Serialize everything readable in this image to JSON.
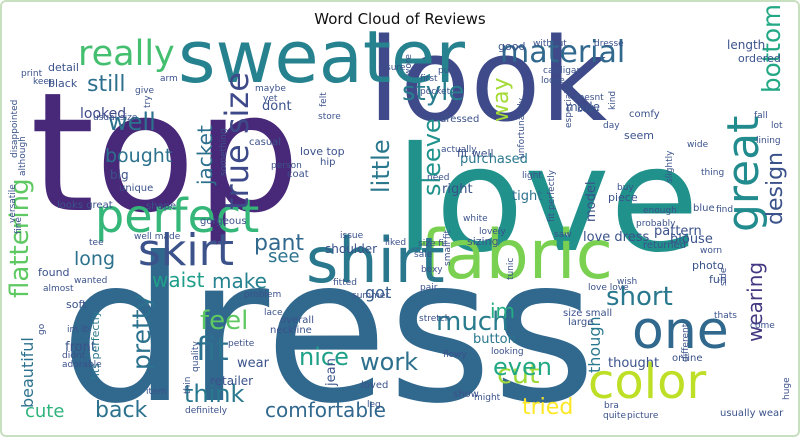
{
  "chart_data": {
    "type": "wordcloud",
    "title": "Word Cloud of Reviews",
    "words": [
      {
        "text": "dress",
        "weight": 100,
        "color": "#31688e"
      },
      {
        "text": "top",
        "weight": 92,
        "color": "#482878"
      },
      {
        "text": "love",
        "weight": 80,
        "color": "#21918c"
      },
      {
        "text": "look",
        "weight": 70,
        "color": "#3e4a89"
      },
      {
        "text": "sweater",
        "weight": 52,
        "color": "#26828e"
      },
      {
        "text": "fabric",
        "weight": 45,
        "color": "#7ad151"
      },
      {
        "text": "shirt",
        "weight": 40,
        "color": "#2a788e"
      },
      {
        "text": "perfect",
        "weight": 36,
        "color": "#35b779"
      },
      {
        "text": "one",
        "weight": 34,
        "color": "#31688e"
      },
      {
        "text": "color",
        "weight": 33,
        "color": "#bddf26"
      },
      {
        "text": "skirt",
        "weight": 32,
        "color": "#3b528b"
      },
      {
        "text": "great",
        "weight": 30,
        "color": "#228b8d"
      },
      {
        "text": "bottom",
        "weight": 27,
        "color": "#22a884"
      },
      {
        "text": "really",
        "weight": 26,
        "color": "#44bf70"
      },
      {
        "text": "true size",
        "weight": 25,
        "color": "#3e4989"
      },
      {
        "text": "material",
        "weight": 24,
        "color": "#31688e"
      },
      {
        "text": "flattering",
        "weight": 22,
        "color": "#5ec962"
      },
      {
        "text": "pretty",
        "weight": 22,
        "color": "#2c728e"
      },
      {
        "text": "style",
        "weight": 21,
        "color": "#287d8e"
      },
      {
        "text": "cut",
        "weight": 21,
        "color": "#a0da39"
      },
      {
        "text": "little",
        "weight": 20,
        "color": "#2a788e"
      },
      {
        "text": "sleeve",
        "weight": 20,
        "color": "#20928c"
      },
      {
        "text": "short",
        "weight": 20,
        "color": "#2a788e"
      },
      {
        "text": "design",
        "weight": 20,
        "color": "#3b528b"
      },
      {
        "text": "pant",
        "weight": 20,
        "color": "#31688e"
      },
      {
        "text": "fit",
        "weight": 20,
        "color": "#2c728e"
      },
      {
        "text": "feel",
        "weight": 20,
        "color": "#5ec962"
      },
      {
        "text": "waist",
        "weight": 19,
        "color": "#1f9e89"
      },
      {
        "text": "make",
        "weight": 19,
        "color": "#26828e"
      },
      {
        "text": "much",
        "weight": 19,
        "color": "#287c8e"
      },
      {
        "text": "think",
        "weight": 19,
        "color": "#29798e"
      },
      {
        "text": "even",
        "weight": 19,
        "color": "#22a884"
      },
      {
        "text": "nice",
        "weight": 18,
        "color": "#1fa088"
      },
      {
        "text": "work",
        "weight": 18,
        "color": "#2d708e"
      },
      {
        "text": "back",
        "weight": 18,
        "color": "#2c728e"
      },
      {
        "text": "comfortable",
        "weight": 17,
        "color": "#31688e"
      },
      {
        "text": "tried",
        "weight": 17,
        "color": "#fde725"
      },
      {
        "text": "well",
        "weight": 17,
        "color": "#2c728e"
      },
      {
        "text": "still",
        "weight": 16,
        "color": "#2d708e"
      },
      {
        "text": "way",
        "weight": 16,
        "color": "#a5db36"
      },
      {
        "text": "bought",
        "weight": 15,
        "color": "#2c728e"
      },
      {
        "text": "jacket",
        "weight": 15,
        "color": "#2d708e"
      },
      {
        "text": "long",
        "weight": 15,
        "color": "#2c728e"
      },
      {
        "text": "see",
        "weight": 15,
        "color": "#2c728e"
      },
      {
        "text": "im",
        "weight": 15,
        "color": "#25ac82"
      },
      {
        "text": "got",
        "weight": 14,
        "color": "#365c8d"
      },
      {
        "text": "wearing",
        "weight": 14,
        "color": "#453882"
      },
      {
        "text": "cute",
        "weight": 14,
        "color": "#2fb47c"
      },
      {
        "text": "beautiful",
        "weight": 13,
        "color": "#2c728e"
      },
      {
        "text": "though",
        "weight": 13,
        "color": "#2a788e"
      },
      {
        "text": "looked",
        "weight": 12,
        "color": "#3e4a89"
      },
      {
        "text": "dont",
        "weight": 11,
        "color": "#3b528b"
      },
      {
        "text": "love dress",
        "weight": 11,
        "color": "#3b528b"
      },
      {
        "text": "blouse",
        "weight": 11,
        "color": "#3b528b"
      },
      {
        "text": "pattern",
        "weight": 11,
        "color": "#3b528b"
      },
      {
        "text": "right",
        "weight": 11,
        "color": "#3b528b"
      },
      {
        "text": "purchased",
        "weight": 11,
        "color": "#2a788e"
      },
      {
        "text": "tight",
        "weight": 11,
        "color": "#2c728e"
      },
      {
        "text": "model",
        "weight": 11,
        "color": "#3b528b"
      },
      {
        "text": "fit well",
        "weight": 10,
        "color": "#3b528b"
      },
      {
        "text": "love top",
        "weight": 10,
        "color": "#3b528b"
      },
      {
        "text": "made",
        "weight": 10,
        "color": "#3b528b"
      },
      {
        "text": "button",
        "weight": 10,
        "color": "#2a788e"
      },
      {
        "text": "wear",
        "weight": 10,
        "color": "#3b528b"
      },
      {
        "text": "retailer",
        "weight": 10,
        "color": "#3b528b"
      },
      {
        "text": "front",
        "weight": 10,
        "color": "#3b528b"
      },
      {
        "text": "shoulder",
        "weight": 10,
        "color": "#3b528b"
      },
      {
        "text": "thought",
        "weight": 10,
        "color": "#3b528b"
      },
      {
        "text": "fits perfectly",
        "weight": 9,
        "color": "#2a788e"
      },
      {
        "text": "detail",
        "weight": 9,
        "color": "#3b528b"
      },
      {
        "text": "black",
        "weight": 9,
        "color": "#3b528b"
      },
      {
        "text": "length",
        "weight": 9,
        "color": "#3b528b"
      },
      {
        "text": "ordered",
        "weight": 8,
        "color": "#3b528b"
      },
      {
        "text": "big",
        "weight": 9,
        "color": "#3b528b"
      },
      {
        "text": "found",
        "weight": 8,
        "color": "#3b528b"
      },
      {
        "text": "jean",
        "weight": 9,
        "color": "#3b528b"
      },
      {
        "text": "piece",
        "weight": 8,
        "color": "#3b528b"
      },
      {
        "text": "seem",
        "weight": 8,
        "color": "#3b528b"
      },
      {
        "text": "good",
        "weight": 8,
        "color": "#3b528b"
      },
      {
        "text": "sizing",
        "weight": 8,
        "color": "#3b528b"
      },
      {
        "text": "soft",
        "weight": 8,
        "color": "#3b528b"
      },
      {
        "text": "photo",
        "weight": 8,
        "color": "#3b528b"
      },
      {
        "text": "fun",
        "weight": 8,
        "color": "#3b528b"
      },
      {
        "text": "large",
        "weight": 8,
        "color": "#3b528b"
      },
      {
        "text": "size small",
        "weight": 8,
        "color": "#3b528b"
      },
      {
        "text": "overall",
        "weight": 8,
        "color": "#3b528b"
      },
      {
        "text": "neckline",
        "weight": 8,
        "color": "#3b528b"
      },
      {
        "text": "loved",
        "weight": 8,
        "color": "#3b528b"
      },
      {
        "text": "show",
        "weight": 8,
        "color": "#3b528b"
      },
      {
        "text": "online",
        "weight": 8,
        "color": "#3b528b"
      },
      {
        "text": "usually wear",
        "weight": 8,
        "color": "#3b528b"
      },
      {
        "text": "definitely",
        "weight": 8,
        "color": "#3b528b"
      },
      {
        "text": "blue",
        "weight": 8,
        "color": "#3b528b"
      },
      {
        "text": "returned",
        "weight": 8,
        "color": "#3b528b"
      },
      {
        "text": "pair",
        "weight": 8,
        "color": "#3b528b"
      },
      {
        "text": "looking",
        "weight": 7,
        "color": "#3b528b"
      },
      {
        "text": "comfy",
        "weight": 7,
        "color": "#3b528b"
      },
      {
        "text": "dresse",
        "weight": 7,
        "color": "#3b528b"
      },
      {
        "text": "without",
        "weight": 7,
        "color": "#3b528b"
      },
      {
        "text": "cardigan",
        "weight": 7,
        "color": "#3b528b"
      },
      {
        "text": "unique",
        "weight": 7,
        "color": "#3b528b"
      },
      {
        "text": "gorgeous",
        "weight": 7,
        "color": "#3b528b"
      },
      {
        "text": "looks great",
        "weight": 7,
        "color": "#3b528b"
      },
      {
        "text": "shape",
        "weight": 7,
        "color": "#3b528b"
      },
      {
        "text": "casual",
        "weight": 7,
        "color": "#3b528b"
      },
      {
        "text": "dressed",
        "weight": 7,
        "color": "#3b528b"
      },
      {
        "text": "hip",
        "weight": 7,
        "color": "#3b528b"
      },
      {
        "text": "coat",
        "weight": 7,
        "color": "#3b528b"
      },
      {
        "text": "white",
        "weight": 7,
        "color": "#3b528b"
      },
      {
        "text": "liked",
        "weight": 7,
        "color": "#3b528b"
      },
      {
        "text": "boxy",
        "weight": 7,
        "color": "#3b528b"
      },
      {
        "text": "fitted",
        "weight": 7,
        "color": "#3b528b"
      },
      {
        "text": "lace",
        "weight": 7,
        "color": "#3b528b"
      },
      {
        "text": "stretch",
        "weight": 7,
        "color": "#3b528b"
      },
      {
        "text": "flowy",
        "weight": 7,
        "color": "#3b528b"
      },
      {
        "text": "lovely",
        "weight": 7,
        "color": "#3b528b"
      },
      {
        "text": "issue",
        "weight": 7,
        "color": "#3b528b"
      },
      {
        "text": "light",
        "weight": 7,
        "color": "#3b528b"
      },
      {
        "text": "thing",
        "weight": 7,
        "color": "#3b528b"
      },
      {
        "text": "lining",
        "weight": 7,
        "color": "#3b528b"
      },
      {
        "text": "lot",
        "weight": 7,
        "color": "#3b528b"
      },
      {
        "text": "wish",
        "weight": 7,
        "color": "#3b528b"
      },
      {
        "text": "enough",
        "weight": 7,
        "color": "#3b528b"
      },
      {
        "text": "probably",
        "weight": 7,
        "color": "#3b528b"
      },
      {
        "text": "come",
        "weight": 7,
        "color": "#3b528b"
      },
      {
        "text": "love love",
        "weight": 7,
        "color": "#3b528b"
      },
      {
        "text": "side",
        "weight": 7,
        "color": "#3b528b"
      },
      {
        "text": "thats",
        "weight": 7,
        "color": "#3b528b"
      },
      {
        "text": "quite",
        "weight": 7,
        "color": "#3b528b"
      },
      {
        "text": "picture",
        "weight": 7,
        "color": "#3b528b"
      },
      {
        "text": "bra",
        "weight": 7,
        "color": "#3b528b"
      },
      {
        "text": "might",
        "weight": 7,
        "color": "#3b528b"
      },
      {
        "text": "leg",
        "weight": 7,
        "color": "#3b528b"
      },
      {
        "text": "problem",
        "weight": 7,
        "color": "#3b528b"
      },
      {
        "text": "petite",
        "weight": 7,
        "color": "#3b528b"
      },
      {
        "text": "adorable",
        "weight": 7,
        "color": "#3b528b"
      },
      {
        "text": "didnt",
        "weight": 7,
        "color": "#3b528b"
      },
      {
        "text": "almost",
        "weight": 7,
        "color": "#3b528b"
      },
      {
        "text": "wanted",
        "weight": 7,
        "color": "#3b528b"
      },
      {
        "text": "well made",
        "weight": 7,
        "color": "#3b528b"
      },
      {
        "text": "tee",
        "weight": 7,
        "color": "#3b528b"
      },
      {
        "text": "im lb",
        "weight": 7,
        "color": "#3b528b"
      },
      {
        "text": "go",
        "weight": 7,
        "color": "#3b528b"
      },
      {
        "text": "item",
        "weight": 7,
        "color": "#3b528b"
      },
      {
        "text": "thin",
        "weight": 7,
        "color": "#3b528b"
      },
      {
        "text": "quality",
        "weight": 7,
        "color": "#3b528b"
      },
      {
        "text": "something",
        "weight": 7,
        "color": "#3b528b"
      },
      {
        "text": "person",
        "weight": 7,
        "color": "#3b528b"
      },
      {
        "text": "usual size",
        "weight": 7,
        "color": "#3b528b"
      },
      {
        "text": "maybe",
        "weight": 7,
        "color": "#3b528b"
      },
      {
        "text": "yet",
        "weight": 7,
        "color": "#3b528b"
      },
      {
        "text": "give",
        "weight": 7,
        "color": "#3b528b"
      },
      {
        "text": "arm",
        "weight": 7,
        "color": "#3b528b"
      },
      {
        "text": "print",
        "weight": 7,
        "color": "#3b528b"
      },
      {
        "text": "keep",
        "weight": 7,
        "color": "#3b528b"
      },
      {
        "text": "sure",
        "weight": 7,
        "color": "#3b528b"
      },
      {
        "text": "put",
        "weight": 7,
        "color": "#3b528b"
      },
      {
        "text": "wore",
        "weight": 7,
        "color": "#3b528b"
      },
      {
        "text": "first",
        "weight": 7,
        "color": "#3b528b"
      },
      {
        "text": "pocket",
        "weight": 7,
        "color": "#3b528b"
      },
      {
        "text": "loose",
        "weight": 7,
        "color": "#3b528b"
      },
      {
        "text": "doesnt",
        "weight": 7,
        "color": "#3b528b"
      },
      {
        "text": "body",
        "weight": 7,
        "color": "#3b528b"
      },
      {
        "text": "kind",
        "weight": 7,
        "color": "#3b528b"
      },
      {
        "text": "day",
        "weight": 7,
        "color": "#3b528b"
      },
      {
        "text": "need",
        "weight": 7,
        "color": "#3b528b"
      },
      {
        "text": "actually",
        "weight": 7,
        "color": "#3b528b"
      },
      {
        "text": "unfortunately",
        "weight": 7,
        "color": "#3b528b"
      },
      {
        "text": "saw",
        "weight": 7,
        "color": "#3b528b"
      },
      {
        "text": "buy",
        "weight": 7,
        "color": "#3b528b"
      },
      {
        "text": "fit perfectly",
        "weight": 7,
        "color": "#3b528b"
      },
      {
        "text": "worn",
        "weight": 7,
        "color": "#3b528b"
      },
      {
        "text": "fall",
        "weight": 7,
        "color": "#3b528b"
      },
      {
        "text": "wide",
        "weight": 7,
        "color": "#3b528b"
      },
      {
        "text": "slightly",
        "weight": 7,
        "color": "#3b528b"
      },
      {
        "text": "find",
        "weight": 7,
        "color": "#3b528b"
      },
      {
        "text": "versatile",
        "weight": 7,
        "color": "#3b528b"
      },
      {
        "text": "although",
        "weight": 7,
        "color": "#3b528b"
      },
      {
        "text": "disappointed",
        "weight": 7,
        "color": "#3b528b"
      },
      {
        "text": "store",
        "weight": 7,
        "color": "#3b528b"
      },
      {
        "text": "felt",
        "weight": 7,
        "color": "#3b528b"
      },
      {
        "text": "sale",
        "weight": 7,
        "color": "#3b528b"
      },
      {
        "text": "size fit",
        "weight": 7,
        "color": "#3b528b"
      },
      {
        "text": "small fit",
        "weight": 7,
        "color": "#3b528b"
      },
      {
        "text": "summer",
        "weight": 7,
        "color": "#3b528b"
      },
      {
        "text": "especially",
        "weight": 7,
        "color": "#3b528b"
      },
      {
        "text": "different",
        "weight": 7,
        "color": "#3b528b"
      },
      {
        "text": "huge",
        "weight": 7,
        "color": "#3b528b"
      },
      {
        "text": "try",
        "weight": 7,
        "color": "#3b528b"
      },
      {
        "text": "tunic",
        "weight": 7,
        "color": "#3b528b"
      },
      {
        "text": "fine",
        "weight": 7,
        "color": "#3b528b"
      }
    ]
  }
}
